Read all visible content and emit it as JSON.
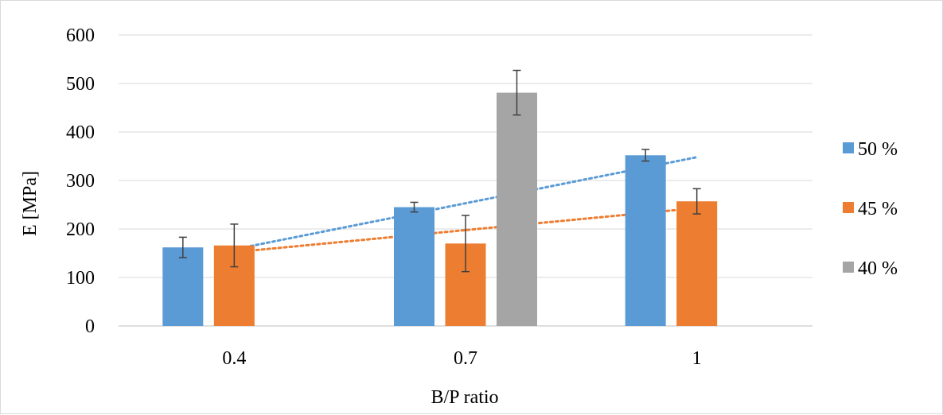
{
  "chart_data": {
    "type": "bar",
    "title": "",
    "xlabel": "B/P ratio",
    "ylabel": "E [MPa]",
    "ylim": [
      0,
      600
    ],
    "yticks": [
      0,
      100,
      200,
      300,
      400,
      500,
      600
    ],
    "categories": [
      "0.4",
      "0.7",
      "1"
    ],
    "grid": "horizontal",
    "legend_position": "right",
    "series": [
      {
        "name": "50 %",
        "color": "#5b9bd5",
        "values": [
          162,
          245,
          352
        ],
        "errors": [
          21,
          10,
          12
        ],
        "trendline": "linear"
      },
      {
        "name": "45 %",
        "color": "#ed7d31",
        "values": [
          166,
          170,
          257
        ],
        "errors": [
          44,
          58,
          26
        ],
        "trendline": "linear"
      },
      {
        "name": "40 %",
        "color": "#a5a5a5",
        "values": [
          null,
          481,
          null
        ],
        "errors": [
          null,
          46,
          null
        ],
        "trendline": "none"
      }
    ]
  }
}
